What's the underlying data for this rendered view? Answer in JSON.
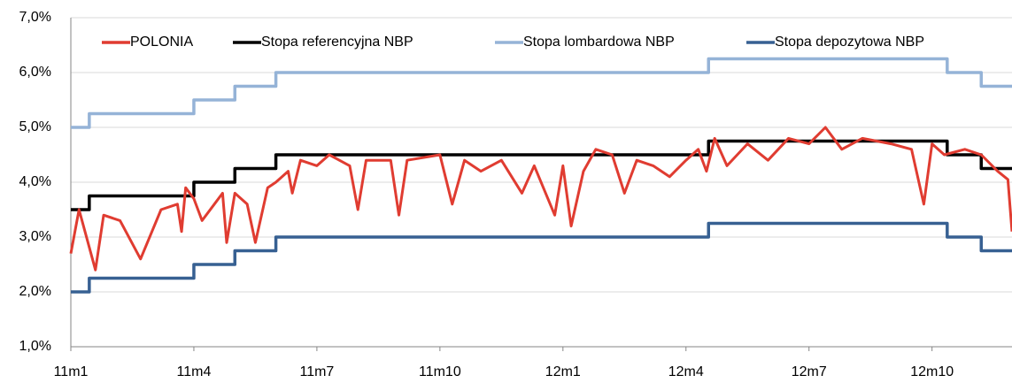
{
  "chart_data": {
    "type": "line",
    "step_series": [
      "Stopa referencyjna NBP",
      "Stopa lombardowa NBP",
      "Stopa depozytowa NBP"
    ],
    "xlim": [
      0,
      22.95
    ],
    "xticks": [
      {
        "value": 0,
        "label": "11m1"
      },
      {
        "value": 3,
        "label": "11m4"
      },
      {
        "value": 6,
        "label": "11m7"
      },
      {
        "value": 9,
        "label": "11m10"
      },
      {
        "value": 12,
        "label": "12m1"
      },
      {
        "value": 15,
        "label": "12m4"
      },
      {
        "value": 18,
        "label": "12m7"
      },
      {
        "value": 21,
        "label": "12m10"
      }
    ],
    "ylim": [
      1,
      7
    ],
    "yticks": [
      {
        "value": 1,
        "label": "1,0%"
      },
      {
        "value": 2,
        "label": "2,0%"
      },
      {
        "value": 3,
        "label": "3,0%"
      },
      {
        "value": 4,
        "label": "4,0%"
      },
      {
        "value": 5,
        "label": "5,0%"
      },
      {
        "value": 6,
        "label": "6,0%"
      },
      {
        "value": 7,
        "label": "7,0%"
      }
    ],
    "grid": true,
    "legend": "top",
    "series": [
      {
        "name": "POLONIA",
        "color": "#e03c31",
        "x": [
          0,
          0.2,
          0.6,
          0.8,
          1.2,
          1.7,
          2.2,
          2.6,
          2.7,
          2.8,
          3.0,
          3.2,
          3.5,
          3.7,
          3.8,
          4.0,
          4.3,
          4.5,
          4.8,
          5.0,
          5.3,
          5.4,
          5.6,
          6,
          6.3,
          6.8,
          7.0,
          7.2,
          7.8,
          8.0,
          8.2,
          9,
          9.3,
          9.6,
          10,
          10.5,
          11,
          11.3,
          11.8,
          12.0,
          12.2,
          12.5,
          12.8,
          13.2,
          13.5,
          13.8,
          14.2,
          14.6,
          15,
          15.3,
          15.5,
          15.7,
          16,
          16.5,
          17,
          17.5,
          18,
          18.4,
          18.8,
          19.3,
          20,
          20.5,
          20.8,
          21,
          21.3,
          21.8,
          22.2,
          22.6,
          22.85,
          22.95
        ],
        "values": [
          2.7,
          3.5,
          2.4,
          3.4,
          3.3,
          2.6,
          3.5,
          3.6,
          3.1,
          3.9,
          3.7,
          3.3,
          3.6,
          3.8,
          2.9,
          3.8,
          3.6,
          2.9,
          3.9,
          4.0,
          4.2,
          3.8,
          4.4,
          4.3,
          4.5,
          4.3,
          3.5,
          4.4,
          4.4,
          3.4,
          4.4,
          4.5,
          3.6,
          4.4,
          4.2,
          4.4,
          3.8,
          4.3,
          3.4,
          4.3,
          3.2,
          4.2,
          4.6,
          4.5,
          3.8,
          4.4,
          4.3,
          4.1,
          4.4,
          4.6,
          4.2,
          4.8,
          4.3,
          4.7,
          4.4,
          4.8,
          4.7,
          5.0,
          4.6,
          4.8,
          4.7,
          4.6,
          3.6,
          4.7,
          4.5,
          4.6,
          4.5,
          4.2,
          4.05,
          3.1
        ]
      },
      {
        "name": "Stopa referencyjna NBP",
        "color": "#000000",
        "x": [
          0,
          0.45,
          3.0,
          4.0,
          5.0,
          15.55,
          21.37,
          22.2,
          22.95
        ],
        "values": [
          3.5,
          3.75,
          4.0,
          4.25,
          4.5,
          4.75,
          4.5,
          4.25,
          4.25
        ]
      },
      {
        "name": "Stopa lombardowa NBP",
        "color": "#95b3d7",
        "x": [
          0,
          0.45,
          3.0,
          4.0,
          5.0,
          15.55,
          21.37,
          22.2,
          22.95
        ],
        "values": [
          5.0,
          5.25,
          5.5,
          5.75,
          6.0,
          6.25,
          6.0,
          5.75,
          5.75
        ]
      },
      {
        "name": "Stopa depozytowa NBP",
        "color": "#376092",
        "x": [
          0,
          0.45,
          3.0,
          4.0,
          5.0,
          15.55,
          21.37,
          22.2,
          22.95
        ],
        "values": [
          2.0,
          2.25,
          2.5,
          2.75,
          3.0,
          3.25,
          3.0,
          2.75,
          2.75
        ]
      }
    ]
  }
}
